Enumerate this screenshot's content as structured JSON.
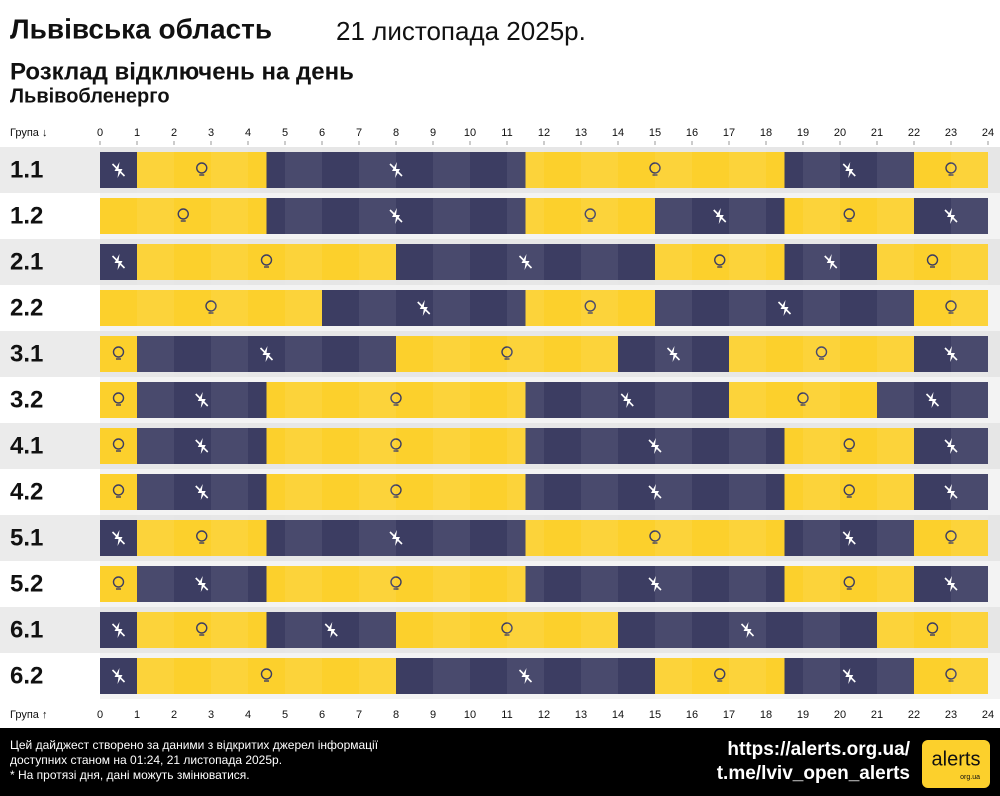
{
  "chart_data": {
    "type": "schedule",
    "title": "Львівська область",
    "date": "21 листопада 2025р.",
    "subtitle": "Розклад відключень на день",
    "source": "Львівобленерго",
    "axis_label_top": "Група ↓",
    "axis_label_bottom": "Група ↑",
    "xlim": [
      0,
      24
    ],
    "xticks": [
      0,
      1,
      2,
      3,
      4,
      5,
      6,
      7,
      8,
      9,
      10,
      11,
      12,
      13,
      14,
      15,
      16,
      17,
      18,
      19,
      20,
      21,
      22,
      23,
      24
    ],
    "colors": {
      "on": "#fcd02c",
      "off": "#3c3d62"
    },
    "groups": [
      {
        "name": "1.1",
        "segments": [
          {
            "start": 0,
            "end": 1,
            "state": "off"
          },
          {
            "start": 1,
            "end": 4.5,
            "state": "on"
          },
          {
            "start": 4.5,
            "end": 11.5,
            "state": "off"
          },
          {
            "start": 11.5,
            "end": 18.5,
            "state": "on"
          },
          {
            "start": 18.5,
            "end": 22,
            "state": "off"
          },
          {
            "start": 22,
            "end": 24,
            "state": "on"
          }
        ]
      },
      {
        "name": "1.2",
        "segments": [
          {
            "start": 0,
            "end": 4.5,
            "state": "on"
          },
          {
            "start": 4.5,
            "end": 11.5,
            "state": "off"
          },
          {
            "start": 11.5,
            "end": 15,
            "state": "on"
          },
          {
            "start": 15,
            "end": 18.5,
            "state": "off"
          },
          {
            "start": 18.5,
            "end": 22,
            "state": "on"
          },
          {
            "start": 22,
            "end": 24,
            "state": "off"
          }
        ]
      },
      {
        "name": "2.1",
        "segments": [
          {
            "start": 0,
            "end": 1,
            "state": "off"
          },
          {
            "start": 1,
            "end": 8,
            "state": "on"
          },
          {
            "start": 8,
            "end": 15,
            "state": "off"
          },
          {
            "start": 15,
            "end": 18.5,
            "state": "on"
          },
          {
            "start": 18.5,
            "end": 21,
            "state": "off"
          },
          {
            "start": 21,
            "end": 24,
            "state": "on"
          }
        ]
      },
      {
        "name": "2.2",
        "segments": [
          {
            "start": 0,
            "end": 6,
            "state": "on"
          },
          {
            "start": 6,
            "end": 11.5,
            "state": "off"
          },
          {
            "start": 11.5,
            "end": 15,
            "state": "on"
          },
          {
            "start": 15,
            "end": 22,
            "state": "off"
          },
          {
            "start": 22,
            "end": 24,
            "state": "on"
          }
        ]
      },
      {
        "name": "3.1",
        "segments": [
          {
            "start": 0,
            "end": 1,
            "state": "on"
          },
          {
            "start": 1,
            "end": 8,
            "state": "off"
          },
          {
            "start": 8,
            "end": 14,
            "state": "on"
          },
          {
            "start": 14,
            "end": 17,
            "state": "off"
          },
          {
            "start": 17,
            "end": 22,
            "state": "on"
          },
          {
            "start": 22,
            "end": 24,
            "state": "off"
          }
        ]
      },
      {
        "name": "3.2",
        "segments": [
          {
            "start": 0,
            "end": 1,
            "state": "on"
          },
          {
            "start": 1,
            "end": 4.5,
            "state": "off"
          },
          {
            "start": 4.5,
            "end": 11.5,
            "state": "on"
          },
          {
            "start": 11.5,
            "end": 17,
            "state": "off"
          },
          {
            "start": 17,
            "end": 21,
            "state": "on"
          },
          {
            "start": 21,
            "end": 24,
            "state": "off"
          }
        ]
      },
      {
        "name": "4.1",
        "segments": [
          {
            "start": 0,
            "end": 1,
            "state": "on"
          },
          {
            "start": 1,
            "end": 4.5,
            "state": "off"
          },
          {
            "start": 4.5,
            "end": 11.5,
            "state": "on"
          },
          {
            "start": 11.5,
            "end": 18.5,
            "state": "off"
          },
          {
            "start": 18.5,
            "end": 22,
            "state": "on"
          },
          {
            "start": 22,
            "end": 24,
            "state": "off"
          }
        ]
      },
      {
        "name": "4.2",
        "segments": [
          {
            "start": 0,
            "end": 1,
            "state": "on"
          },
          {
            "start": 1,
            "end": 4.5,
            "state": "off"
          },
          {
            "start": 4.5,
            "end": 11.5,
            "state": "on"
          },
          {
            "start": 11.5,
            "end": 18.5,
            "state": "off"
          },
          {
            "start": 18.5,
            "end": 22,
            "state": "on"
          },
          {
            "start": 22,
            "end": 24,
            "state": "off"
          }
        ]
      },
      {
        "name": "5.1",
        "segments": [
          {
            "start": 0,
            "end": 1,
            "state": "off"
          },
          {
            "start": 1,
            "end": 4.5,
            "state": "on"
          },
          {
            "start": 4.5,
            "end": 11.5,
            "state": "off"
          },
          {
            "start": 11.5,
            "end": 18.5,
            "state": "on"
          },
          {
            "start": 18.5,
            "end": 22,
            "state": "off"
          },
          {
            "start": 22,
            "end": 24,
            "state": "on"
          }
        ]
      },
      {
        "name": "5.2",
        "segments": [
          {
            "start": 0,
            "end": 1,
            "state": "on"
          },
          {
            "start": 1,
            "end": 4.5,
            "state": "off"
          },
          {
            "start": 4.5,
            "end": 11.5,
            "state": "on"
          },
          {
            "start": 11.5,
            "end": 18.5,
            "state": "off"
          },
          {
            "start": 18.5,
            "end": 22,
            "state": "on"
          },
          {
            "start": 22,
            "end": 24,
            "state": "off"
          }
        ]
      },
      {
        "name": "6.1",
        "segments": [
          {
            "start": 0,
            "end": 1,
            "state": "off"
          },
          {
            "start": 1,
            "end": 4.5,
            "state": "on"
          },
          {
            "start": 4.5,
            "end": 8,
            "state": "off"
          },
          {
            "start": 8,
            "end": 14,
            "state": "on"
          },
          {
            "start": 14,
            "end": 21,
            "state": "off"
          },
          {
            "start": 21,
            "end": 24,
            "state": "on"
          }
        ]
      },
      {
        "name": "6.2",
        "segments": [
          {
            "start": 0,
            "end": 1,
            "state": "off"
          },
          {
            "start": 1,
            "end": 8,
            "state": "on"
          },
          {
            "start": 8,
            "end": 15,
            "state": "off"
          },
          {
            "start": 15,
            "end": 18.5,
            "state": "on"
          },
          {
            "start": 18.5,
            "end": 22,
            "state": "off"
          },
          {
            "start": 22,
            "end": 24,
            "state": "on"
          }
        ]
      }
    ],
    "footer": [
      "Цей дайджест створено за даними з відкритих джерел інформації",
      "доступних станом на 01:24, 21 листопада 2025р.",
      "* На протязі дня, дані можуть змінюватися."
    ],
    "links": [
      "https://alerts.org.ua/",
      "t.me/lviv_open_alerts"
    ],
    "logo": "alerts",
    "logo_sub": "org.ua"
  }
}
